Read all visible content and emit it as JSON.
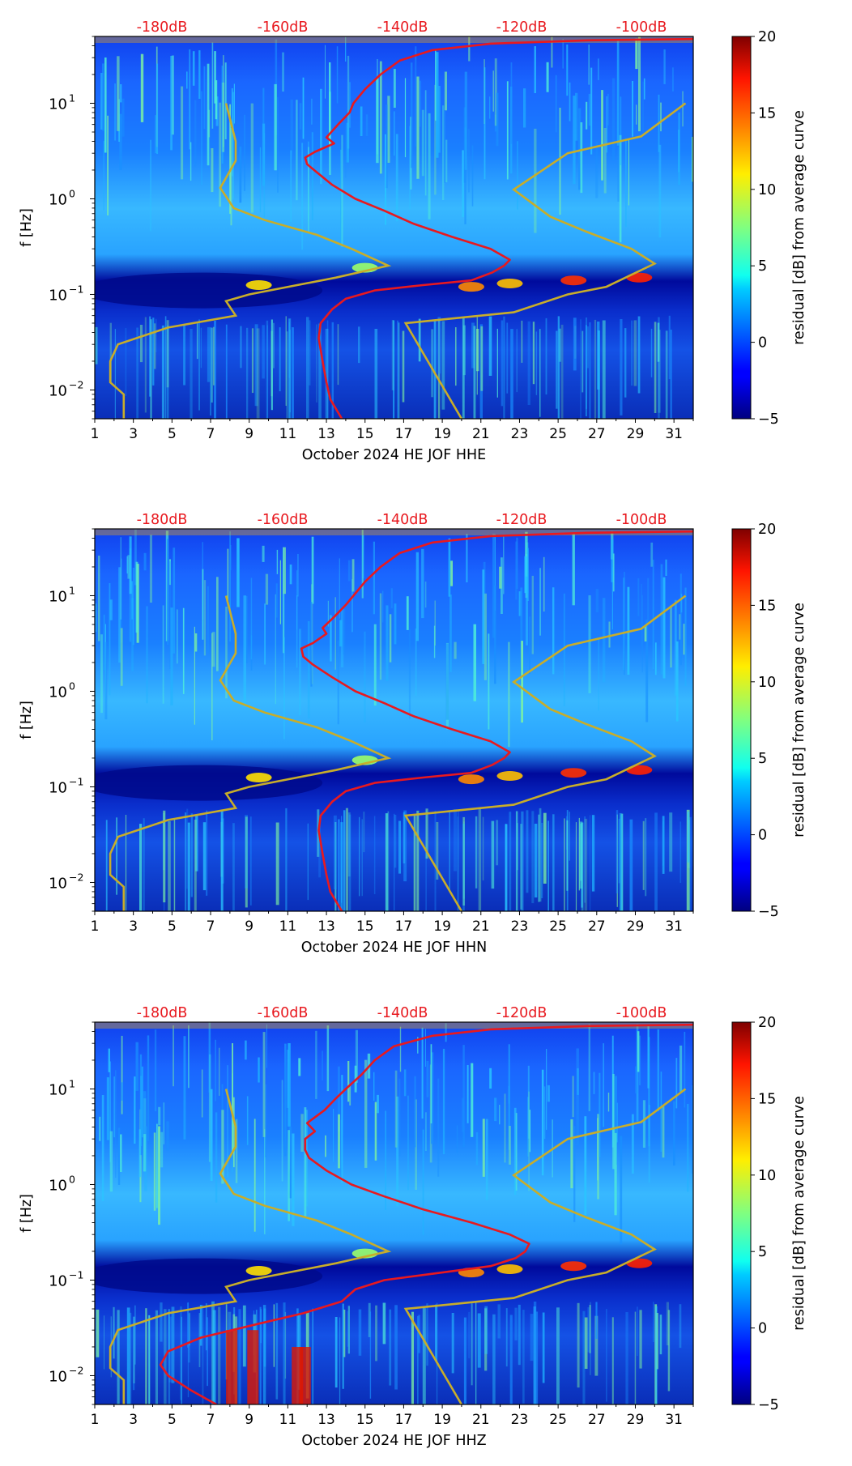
{
  "chart_data": [
    {
      "type": "heatmap",
      "title": "",
      "xlabel": "October 2024 HE JOF  HHE",
      "ylabel": "f [Hz]",
      "x_ticks": [
        "1",
        "3",
        "5",
        "7",
        "9",
        "11",
        "13",
        "15",
        "17",
        "19",
        "21",
        "23",
        "25",
        "27",
        "29",
        "31"
      ],
      "xlim": [
        1,
        32
      ],
      "ylim": [
        0.005,
        50
      ],
      "y_scale": "log",
      "y_ticks": [
        {
          "base": "10",
          "exp": "1"
        },
        {
          "base": "10",
          "exp": "0"
        },
        {
          "base": "10",
          "exp": "−1"
        },
        {
          "base": "10",
          "exp": "−2"
        }
      ],
      "y_tick_values": [
        10,
        1,
        0.1,
        0.01
      ],
      "db_labels": [
        "-180dB",
        "-160dB",
        "-140dB",
        "-120dB",
        "-100dB"
      ],
      "db_positions": [
        1,
        0.8,
        0.6,
        0.4,
        0.2
      ],
      "colorbar": {
        "label": "residual [dB] from average curve",
        "ticks": [
          "20",
          "15",
          "10",
          "5",
          "0",
          "−5"
        ],
        "range": [
          -5,
          20
        ],
        "colormap": "jet"
      },
      "curve_colors": {
        "median": "#e8191f",
        "model": "#c8ad2a"
      },
      "red_curve": [
        [
          13.8,
          0.005
        ],
        [
          13.2,
          0.008
        ],
        [
          13.0,
          0.012
        ],
        [
          12.8,
          0.02
        ],
        [
          12.6,
          0.035
        ],
        [
          12.7,
          0.05
        ],
        [
          13.3,
          0.07
        ],
        [
          14.0,
          0.09
        ],
        [
          15.5,
          0.11
        ],
        [
          18,
          0.125
        ],
        [
          20.5,
          0.14
        ],
        [
          21.6,
          0.17
        ],
        [
          22.2,
          0.2
        ],
        [
          22.5,
          0.23
        ],
        [
          21.5,
          0.3
        ],
        [
          19.5,
          0.4
        ],
        [
          17.5,
          0.55
        ],
        [
          16.0,
          0.75
        ],
        [
          14.5,
          1.0
        ],
        [
          13.3,
          1.4
        ],
        [
          12.5,
          1.9
        ],
        [
          12.0,
          2.3
        ],
        [
          11.9,
          2.7
        ],
        [
          12.4,
          3.1
        ],
        [
          13.4,
          3.8
        ],
        [
          13.0,
          4.4
        ],
        [
          13.6,
          6
        ],
        [
          14.2,
          8
        ],
        [
          14.4,
          10
        ],
        [
          15.0,
          14
        ],
        [
          15.8,
          20
        ],
        [
          16.8,
          28
        ],
        [
          18.5,
          36
        ],
        [
          21.5,
          42
        ],
        [
          26.5,
          45.5
        ],
        [
          32,
          47
        ]
      ],
      "model_curves": {
        "low": [
          [
            2.5,
            0.005
          ],
          [
            2.5,
            0.009
          ],
          [
            1.8,
            0.012
          ],
          [
            1.8,
            0.02
          ],
          [
            2.2,
            0.03
          ],
          [
            4.8,
            0.045
          ],
          [
            8.3,
            0.06
          ],
          [
            7.8,
            0.085
          ],
          [
            9.0,
            0.1
          ],
          [
            13.5,
            0.15
          ],
          [
            16.2,
            0.2
          ],
          [
            14.3,
            0.3
          ],
          [
            12.5,
            0.42
          ],
          [
            9.8,
            0.6
          ],
          [
            8.2,
            0.8
          ],
          [
            7.5,
            1.3
          ],
          [
            8.3,
            2.5
          ],
          [
            8.3,
            4
          ],
          [
            7.8,
            10
          ]
        ],
        "high": [
          [
            20,
            0.005
          ],
          [
            17.1,
            0.05
          ],
          [
            22.7,
            0.065
          ],
          [
            25.5,
            0.1
          ],
          [
            27.5,
            0.12
          ],
          [
            30,
            0.21
          ],
          [
            28.8,
            0.3
          ],
          [
            26.5,
            0.45
          ],
          [
            24.6,
            0.65
          ],
          [
            22.7,
            1.25
          ],
          [
            25.5,
            3
          ],
          [
            29.3,
            4.5
          ],
          [
            31.6,
            10
          ]
        ]
      }
    },
    {
      "type": "heatmap",
      "title": "",
      "xlabel": "October 2024 HE JOF  HHN",
      "ylabel": "f [Hz]",
      "x_ticks": [
        "1",
        "3",
        "5",
        "7",
        "9",
        "11",
        "13",
        "15",
        "17",
        "19",
        "21",
        "23",
        "25",
        "27",
        "29",
        "31"
      ],
      "xlim": [
        1,
        32
      ],
      "ylim": [
        0.005,
        50
      ],
      "y_scale": "log",
      "y_ticks": [
        {
          "base": "10",
          "exp": "1"
        },
        {
          "base": "10",
          "exp": "0"
        },
        {
          "base": "10",
          "exp": "−1"
        },
        {
          "base": "10",
          "exp": "−2"
        }
      ],
      "y_tick_values": [
        10,
        1,
        0.1,
        0.01
      ],
      "db_labels": [
        "-180dB",
        "-160dB",
        "-140dB",
        "-120dB",
        "-100dB"
      ],
      "db_positions": [
        1,
        0.8,
        0.6,
        0.4,
        0.2
      ],
      "colorbar": {
        "label": "residual [dB] from average curve",
        "ticks": [
          "20",
          "15",
          "10",
          "5",
          "0",
          "−5"
        ],
        "range": [
          -5,
          20
        ],
        "colormap": "jet"
      },
      "curve_colors": {
        "median": "#e8191f",
        "model": "#c8ad2a"
      },
      "red_curve": [
        [
          13.8,
          0.005
        ],
        [
          13.2,
          0.008
        ],
        [
          13.0,
          0.012
        ],
        [
          12.8,
          0.02
        ],
        [
          12.6,
          0.035
        ],
        [
          12.7,
          0.05
        ],
        [
          13.3,
          0.07
        ],
        [
          14.0,
          0.09
        ],
        [
          15.5,
          0.11
        ],
        [
          18,
          0.125
        ],
        [
          20.5,
          0.14
        ],
        [
          21.6,
          0.17
        ],
        [
          22.2,
          0.2
        ],
        [
          22.5,
          0.23
        ],
        [
          21.5,
          0.3
        ],
        [
          19.5,
          0.4
        ],
        [
          17.5,
          0.55
        ],
        [
          16.0,
          0.75
        ],
        [
          14.5,
          1.0
        ],
        [
          13.3,
          1.4
        ],
        [
          12.3,
          1.9
        ],
        [
          11.8,
          2.3
        ],
        [
          11.7,
          2.8
        ],
        [
          12.3,
          3.2
        ],
        [
          13.0,
          4.0
        ],
        [
          12.8,
          4.6
        ],
        [
          13.4,
          6
        ],
        [
          14.0,
          8
        ],
        [
          14.4,
          10
        ],
        [
          15.0,
          14
        ],
        [
          15.8,
          20
        ],
        [
          16.8,
          28
        ],
        [
          18.5,
          36
        ],
        [
          21.5,
          42
        ],
        [
          26.5,
          45.5
        ],
        [
          32,
          47
        ]
      ],
      "model_curves": {
        "low": [
          [
            2.5,
            0.005
          ],
          [
            2.5,
            0.009
          ],
          [
            1.8,
            0.012
          ],
          [
            1.8,
            0.02
          ],
          [
            2.2,
            0.03
          ],
          [
            4.8,
            0.045
          ],
          [
            8.3,
            0.06
          ],
          [
            7.8,
            0.085
          ],
          [
            9.0,
            0.1
          ],
          [
            13.5,
            0.15
          ],
          [
            16.2,
            0.2
          ],
          [
            14.3,
            0.3
          ],
          [
            12.5,
            0.42
          ],
          [
            9.8,
            0.6
          ],
          [
            8.2,
            0.8
          ],
          [
            7.5,
            1.3
          ],
          [
            8.3,
            2.5
          ],
          [
            8.3,
            4
          ],
          [
            7.8,
            10
          ]
        ],
        "high": [
          [
            20,
            0.005
          ],
          [
            17.1,
            0.05
          ],
          [
            22.7,
            0.065
          ],
          [
            25.5,
            0.1
          ],
          [
            27.5,
            0.12
          ],
          [
            30,
            0.21
          ],
          [
            28.8,
            0.3
          ],
          [
            26.5,
            0.45
          ],
          [
            24.6,
            0.65
          ],
          [
            22.7,
            1.25
          ],
          [
            25.5,
            3
          ],
          [
            29.3,
            4.5
          ],
          [
            31.6,
            10
          ]
        ]
      }
    },
    {
      "type": "heatmap",
      "title": "",
      "xlabel": "October 2024 HE JOF  HHZ",
      "ylabel": "f [Hz]",
      "x_ticks": [
        "1",
        "3",
        "5",
        "7",
        "9",
        "11",
        "13",
        "15",
        "17",
        "19",
        "21",
        "23",
        "25",
        "27",
        "29",
        "31"
      ],
      "xlim": [
        1,
        32
      ],
      "ylim": [
        0.005,
        50
      ],
      "y_scale": "log",
      "y_ticks": [
        {
          "base": "10",
          "exp": "1"
        },
        {
          "base": "10",
          "exp": "0"
        },
        {
          "base": "10",
          "exp": "−1"
        },
        {
          "base": "10",
          "exp": "−2"
        }
      ],
      "y_tick_values": [
        10,
        1,
        0.1,
        0.01
      ],
      "db_labels": [
        "-180dB",
        "-160dB",
        "-140dB",
        "-120dB",
        "-100dB"
      ],
      "db_positions": [
        1,
        0.8,
        0.6,
        0.4,
        0.2
      ],
      "colorbar": {
        "label": "residual [dB] from average curve",
        "ticks": [
          "20",
          "15",
          "10",
          "5",
          "0",
          "−5"
        ],
        "range": [
          -5,
          20
        ],
        "colormap": "jet"
      },
      "curve_colors": {
        "median": "#e8191f",
        "model": "#c8ad2a"
      },
      "red_curve": [
        [
          7.3,
          0.005
        ],
        [
          6.0,
          0.007
        ],
        [
          4.8,
          0.01
        ],
        [
          4.4,
          0.013
        ],
        [
          4.8,
          0.018
        ],
        [
          6.5,
          0.025
        ],
        [
          9.5,
          0.035
        ],
        [
          11.8,
          0.045
        ],
        [
          13.8,
          0.06
        ],
        [
          14.5,
          0.08
        ],
        [
          16.0,
          0.1
        ],
        [
          19.0,
          0.12
        ],
        [
          21.5,
          0.14
        ],
        [
          22.8,
          0.17
        ],
        [
          23.3,
          0.2
        ],
        [
          23.5,
          0.24
        ],
        [
          22.5,
          0.3
        ],
        [
          20.5,
          0.4
        ],
        [
          18.0,
          0.55
        ],
        [
          16.0,
          0.75
        ],
        [
          14.3,
          1.0
        ],
        [
          13.0,
          1.4
        ],
        [
          12.1,
          1.9
        ],
        [
          11.9,
          2.3
        ],
        [
          11.9,
          3.0
        ],
        [
          12.4,
          3.6
        ],
        [
          12.0,
          4.4
        ],
        [
          12.9,
          6
        ],
        [
          13.5,
          8
        ],
        [
          14.0,
          10
        ],
        [
          14.8,
          14
        ],
        [
          15.5,
          20
        ],
        [
          16.5,
          28
        ],
        [
          18.5,
          36
        ],
        [
          21.5,
          42
        ],
        [
          26.5,
          45.5
        ],
        [
          32,
          47
        ]
      ],
      "model_curves": {
        "low": [
          [
            2.5,
            0.005
          ],
          [
            2.5,
            0.009
          ],
          [
            1.8,
            0.012
          ],
          [
            1.8,
            0.02
          ],
          [
            2.2,
            0.03
          ],
          [
            4.8,
            0.045
          ],
          [
            8.3,
            0.06
          ],
          [
            7.8,
            0.085
          ],
          [
            9.0,
            0.1
          ],
          [
            13.5,
            0.15
          ],
          [
            16.2,
            0.2
          ],
          [
            14.3,
            0.3
          ],
          [
            12.5,
            0.42
          ],
          [
            9.8,
            0.6
          ],
          [
            8.2,
            0.8
          ],
          [
            7.5,
            1.3
          ],
          [
            8.3,
            2.5
          ],
          [
            8.3,
            4
          ],
          [
            7.8,
            10
          ]
        ],
        "high": [
          [
            20,
            0.005
          ],
          [
            17.1,
            0.05
          ],
          [
            22.7,
            0.065
          ],
          [
            25.5,
            0.1
          ],
          [
            27.5,
            0.12
          ],
          [
            30,
            0.21
          ],
          [
            28.8,
            0.3
          ],
          [
            26.5,
            0.45
          ],
          [
            24.6,
            0.65
          ],
          [
            22.7,
            1.25
          ],
          [
            25.5,
            3
          ],
          [
            29.3,
            4.5
          ],
          [
            31.6,
            10
          ]
        ]
      }
    }
  ]
}
